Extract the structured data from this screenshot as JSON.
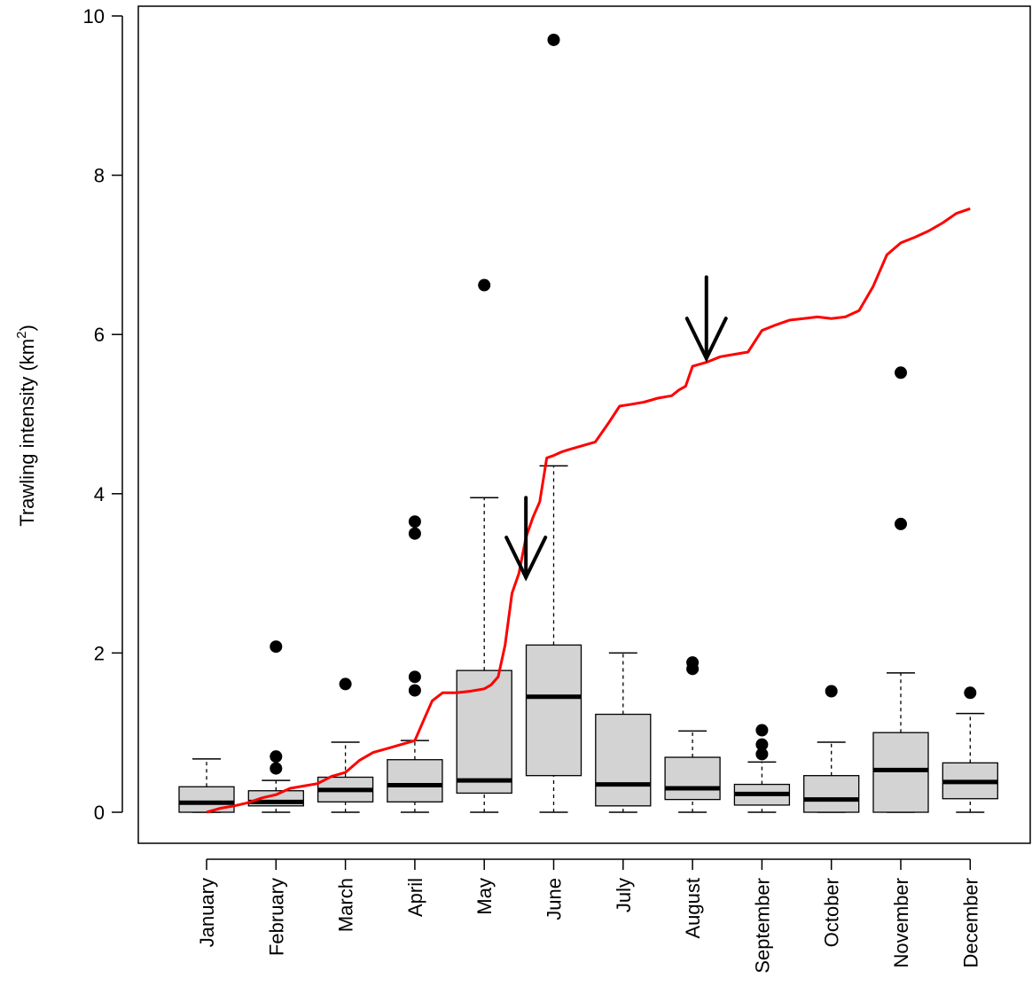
{
  "chart_data": {
    "type": "box",
    "ylabel": "Trawling intensity (km",
    "ylabel_sup": "2",
    "ylabel_close": ")",
    "ylim": [
      0,
      10
    ],
    "yticks": [
      0,
      2,
      4,
      6,
      8,
      10
    ],
    "categories": [
      "January",
      "February",
      "March",
      "April",
      "May",
      "June",
      "July",
      "August",
      "September",
      "October",
      "November",
      "December"
    ],
    "boxes": [
      {
        "whisker_low": 0,
        "q1": 0.0,
        "median": 0.12,
        "q3": 0.32,
        "whisker_high": 0.67,
        "outliers": []
      },
      {
        "whisker_low": 0,
        "q1": 0.08,
        "median": 0.13,
        "q3": 0.27,
        "whisker_high": 0.4,
        "outliers": [
          0.55,
          0.7,
          2.08
        ]
      },
      {
        "whisker_low": 0,
        "q1": 0.13,
        "median": 0.28,
        "q3": 0.44,
        "whisker_high": 0.88,
        "outliers": [
          1.61
        ]
      },
      {
        "whisker_low": 0,
        "q1": 0.13,
        "median": 0.34,
        "q3": 0.66,
        "whisker_high": 0.9,
        "outliers": [
          1.53,
          1.7,
          3.5,
          3.65
        ]
      },
      {
        "whisker_low": 0,
        "q1": 0.24,
        "median": 0.4,
        "q3": 1.78,
        "whisker_high": 3.95,
        "outliers": [
          6.62
        ]
      },
      {
        "whisker_low": 0,
        "q1": 0.46,
        "median": 1.45,
        "q3": 2.1,
        "whisker_high": 4.35,
        "outliers": [
          9.7
        ]
      },
      {
        "whisker_low": 0,
        "q1": 0.08,
        "median": 0.35,
        "q3": 1.23,
        "whisker_high": 2.0,
        "outliers": []
      },
      {
        "whisker_low": 0,
        "q1": 0.16,
        "median": 0.3,
        "q3": 0.69,
        "whisker_high": 1.02,
        "outliers": [
          1.8,
          1.88
        ]
      },
      {
        "whisker_low": 0,
        "q1": 0.09,
        "median": 0.23,
        "q3": 0.35,
        "whisker_high": 0.63,
        "outliers": [
          0.73,
          0.85,
          1.03
        ]
      },
      {
        "whisker_low": 0,
        "q1": 0.0,
        "median": 0.16,
        "q3": 0.46,
        "whisker_high": 0.88,
        "outliers": [
          1.52
        ]
      },
      {
        "whisker_low": 0,
        "q1": 0.0,
        "median": 0.53,
        "q3": 1.0,
        "whisker_high": 1.75,
        "outliers": [
          3.62,
          5.52
        ]
      },
      {
        "whisker_low": 0,
        "q1": 0.17,
        "median": 0.38,
        "q3": 0.62,
        "whisker_high": 1.24,
        "outliers": [
          1.5
        ]
      }
    ],
    "cumulative_line": {
      "color": "#ff0000",
      "x": [
        1.0,
        1.2,
        1.4,
        1.6,
        1.8,
        2.0,
        2.2,
        2.4,
        2.6,
        2.8,
        3.0,
        3.2,
        3.4,
        3.6,
        3.8,
        4.0,
        4.15,
        4.25,
        4.4,
        4.6,
        4.8,
        5.0,
        5.1,
        5.2,
        5.3,
        5.4,
        5.5,
        5.6,
        5.7,
        5.8,
        5.9,
        6.0,
        6.1,
        6.2,
        6.4,
        6.6,
        6.8,
        6.95,
        7.1,
        7.3,
        7.5,
        7.7,
        7.8,
        7.9,
        8.0,
        8.2,
        8.4,
        8.6,
        8.8,
        9.0,
        9.2,
        9.4,
        9.6,
        9.8,
        10.0,
        10.2,
        10.4,
        10.6,
        10.8,
        11.0,
        11.2,
        11.4,
        11.6,
        11.8,
        12.0
      ],
      "y": [
        0.0,
        0.05,
        0.08,
        0.12,
        0.18,
        0.22,
        0.3,
        0.33,
        0.36,
        0.45,
        0.5,
        0.65,
        0.75,
        0.8,
        0.85,
        0.9,
        1.2,
        1.4,
        1.5,
        1.5,
        1.52,
        1.55,
        1.6,
        1.7,
        2.1,
        2.75,
        3.0,
        3.45,
        3.7,
        3.9,
        4.45,
        4.48,
        4.52,
        4.55,
        4.6,
        4.65,
        4.9,
        5.1,
        5.12,
        5.15,
        5.2,
        5.23,
        5.3,
        5.35,
        5.6,
        5.65,
        5.72,
        5.75,
        5.78,
        6.05,
        6.12,
        6.18,
        6.2,
        6.22,
        6.2,
        6.22,
        6.3,
        6.6,
        7.0,
        7.15,
        7.22,
        7.3,
        7.4,
        7.52,
        7.58
      ]
    },
    "arrows": [
      {
        "x": 5.6,
        "y_top": 3.95,
        "y_tip": 2.95
      },
      {
        "x": 8.2,
        "y_top": 6.72,
        "y_tip": 5.7
      }
    ]
  }
}
